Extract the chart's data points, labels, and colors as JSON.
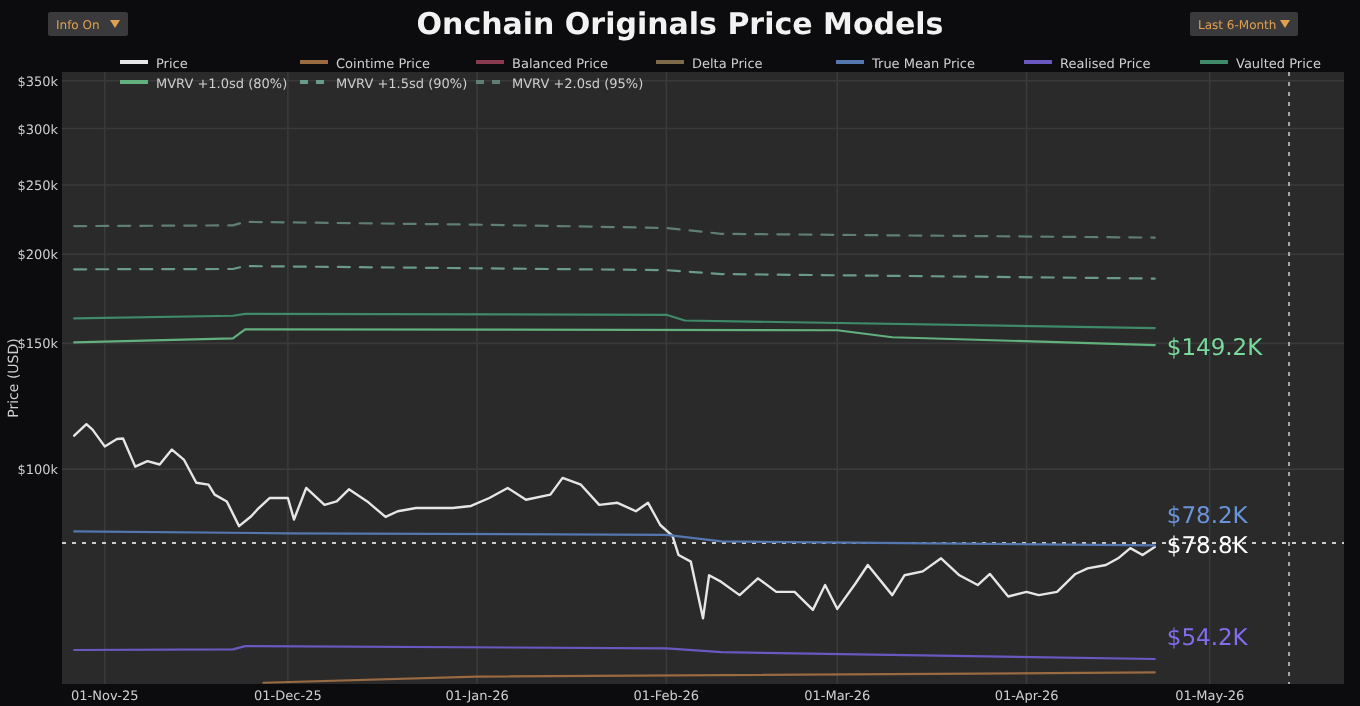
{
  "chart_data": {
    "type": "line",
    "title": "Onchain Originals Price Models",
    "ylabel": "Price (USD)",
    "xlim": [
      "2025-10-25",
      "2026-05-23"
    ],
    "xticks": [
      {
        "value": "2025-11-01",
        "label": "01-Nov-25"
      },
      {
        "value": "2025-12-01",
        "label": "01-Dec-25"
      },
      {
        "value": "2026-01-01",
        "label": "01-Jan-26"
      },
      {
        "value": "2026-02-01",
        "label": "01-Feb-26"
      },
      {
        "value": "2026-03-01",
        "label": "01-Mar-26"
      },
      {
        "value": "2026-04-01",
        "label": "01-Apr-26"
      },
      {
        "value": "2026-05-01",
        "label": "01-May-26"
      }
    ],
    "ylim": [
      50000,
      360000
    ],
    "log": true,
    "yticks": [
      {
        "value": 100000,
        "label": "$100k"
      },
      {
        "value": 150000,
        "label": "$150k"
      },
      {
        "value": 200000,
        "label": "$200k"
      },
      {
        "value": 250000,
        "label": "$250k"
      },
      {
        "value": 300000,
        "label": "$300k"
      },
      {
        "value": 350000,
        "label": "$350k"
      }
    ],
    "grid": true,
    "legend": "top",
    "marker": "none",
    "series": [
      {
        "name": "Price",
        "color": "#e6e6e6",
        "x": [
          "2025-10-27",
          "2025-10-29",
          "2025-10-30",
          "2025-11-01",
          "2025-11-03",
          "2025-11-04",
          "2025-11-06",
          "2025-11-08",
          "2025-11-10",
          "2025-11-12",
          "2025-11-14",
          "2025-11-16",
          "2025-11-18",
          "2025-11-19",
          "2025-11-21",
          "2025-11-23",
          "2025-11-25",
          "2025-11-26",
          "2025-11-28",
          "2025-12-01",
          "2025-12-02",
          "2025-12-04",
          "2025-12-07",
          "2025-12-09",
          "2025-12-11",
          "2025-12-14",
          "2025-12-17",
          "2025-12-19",
          "2025-12-22",
          "2025-12-25",
          "2025-12-28",
          "2025-12-31",
          "2026-01-03",
          "2026-01-06",
          "2026-01-09",
          "2026-01-13",
          "2026-01-15",
          "2026-01-18",
          "2026-01-21",
          "2026-01-24",
          "2026-01-27",
          "2026-01-29",
          "2026-01-31",
          "2026-02-02",
          "2026-02-03",
          "2026-02-05",
          "2026-02-07",
          "2026-02-08",
          "2026-02-10",
          "2026-02-13",
          "2026-02-16",
          "2026-02-19",
          "2026-02-22",
          "2026-02-25",
          "2026-02-27",
          "2026-03-01",
          "2026-03-04",
          "2026-03-06",
          "2026-03-10",
          "2026-03-12",
          "2026-03-15",
          "2026-03-18",
          "2026-03-21",
          "2026-03-24",
          "2026-03-26",
          "2026-03-29",
          "2026-04-01",
          "2026-04-03",
          "2026-04-06",
          "2026-04-09",
          "2026-04-11",
          "2026-04-14",
          "2026-04-16",
          "2026-04-18",
          "2026-04-20",
          "2026-04-22"
        ],
        "values": [
          111400,
          115600,
          113600,
          107600,
          110200,
          110400,
          100800,
          102600,
          101500,
          106500,
          103000,
          95700,
          95100,
          92100,
          90100,
          83200,
          85900,
          87800,
          91100,
          91100,
          85000,
          94100,
          89100,
          90100,
          93700,
          90100,
          85700,
          87300,
          88200,
          88200,
          88200,
          88800,
          91100,
          94100,
          90600,
          92100,
          97200,
          95100,
          89100,
          89700,
          87300,
          89700,
          83500,
          80600,
          75800,
          74200,
          61800,
          71000,
          69500,
          66600,
          70300,
          67300,
          67300,
          63500,
          68800,
          63700,
          69200,
          73400,
          66600,
          71000,
          71900,
          75000,
          71000,
          68800,
          71300,
          66300,
          67300,
          66600,
          67300,
          71300,
          72600,
          73400,
          75000,
          77500,
          75800,
          77800
        ]
      },
      {
        "name": "Cointime Price",
        "color": "#9a6a40",
        "x": [
          "2025-11-27",
          "2026-01-01",
          "2026-04-22"
        ],
        "values": [
          50200,
          51200,
          51900
        ]
      },
      {
        "name": "Balanced Price",
        "color": "#8a3a4e"
      },
      {
        "name": "Delta Price",
        "color": "#7d6a48"
      },
      {
        "name": "True Mean Price",
        "color": "#5577b0",
        "x": [
          "2025-10-27",
          "2025-12-01",
          "2026-02-01",
          "2026-02-10",
          "2026-04-22"
        ],
        "values": [
          81800,
          81300,
          80900,
          79200,
          78200
        ]
      },
      {
        "name": "Realised Price",
        "color": "#6a58c0",
        "x": [
          "2025-10-27",
          "2025-11-22",
          "2025-11-24",
          "2026-02-01",
          "2026-02-10",
          "2026-04-22"
        ],
        "values": [
          55800,
          55900,
          56500,
          56100,
          55400,
          54200
        ]
      },
      {
        "name": "Vaulted Price",
        "color": "#3f8a68",
        "x": [
          "2025-10-27",
          "2025-11-22",
          "2025-11-24",
          "2026-02-01",
          "2026-02-04",
          "2026-04-22"
        ],
        "values": [
          162600,
          164000,
          165000,
          164500,
          161500,
          157600
        ]
      },
      {
        "name": "MVRV +1.0sd (80%)",
        "color": "#62b07e",
        "x": [
          "2025-10-27",
          "2025-11-22",
          "2025-11-24",
          "2026-03-01",
          "2026-03-10",
          "2026-04-22"
        ],
        "values": [
          150500,
          152500,
          157000,
          156500,
          153000,
          149200
        ]
      },
      {
        "name": "MVRV +1.5sd (90%)",
        "color": "#6a9a88",
        "line_style": "dashed",
        "x": [
          "2025-10-27",
          "2025-11-22",
          "2025-11-24",
          "2026-02-01",
          "2026-02-10",
          "2026-04-22"
        ],
        "values": [
          190500,
          190700,
          192500,
          190000,
          187600,
          184900
        ]
      },
      {
        "name": "MVRV +2.0sd (95%)",
        "color": "#5f7f74",
        "line_style": "dashed",
        "x": [
          "2025-10-27",
          "2025-11-22",
          "2025-11-24",
          "2026-01-01",
          "2026-02-01",
          "2026-02-10",
          "2026-04-22"
        ],
        "values": [
          219000,
          219500,
          222000,
          220000,
          217700,
          213600,
          211000
        ]
      }
    ],
    "ref_lines": [
      {
        "axis": "y",
        "value": 78800,
        "color": "#cccccc",
        "line_style": "dotted"
      },
      {
        "axis": "x",
        "value": "2026-05-14",
        "color": "#aaaaaa",
        "line_style": "dotted"
      }
    ],
    "annotations": [
      "Info On",
      "Last 6-Month",
      {
        "text": "$149.2K",
        "x": "2026-04-22",
        "y": 149200
      },
      {
        "text": "$78.2K",
        "x": "2026-04-22",
        "y": 78200
      },
      {
        "text": "$78.8K",
        "x": "2026-04-22",
        "y": 78800
      },
      {
        "text": "$54.2K",
        "x": "2026-04-22",
        "y": 54200
      }
    ]
  }
}
